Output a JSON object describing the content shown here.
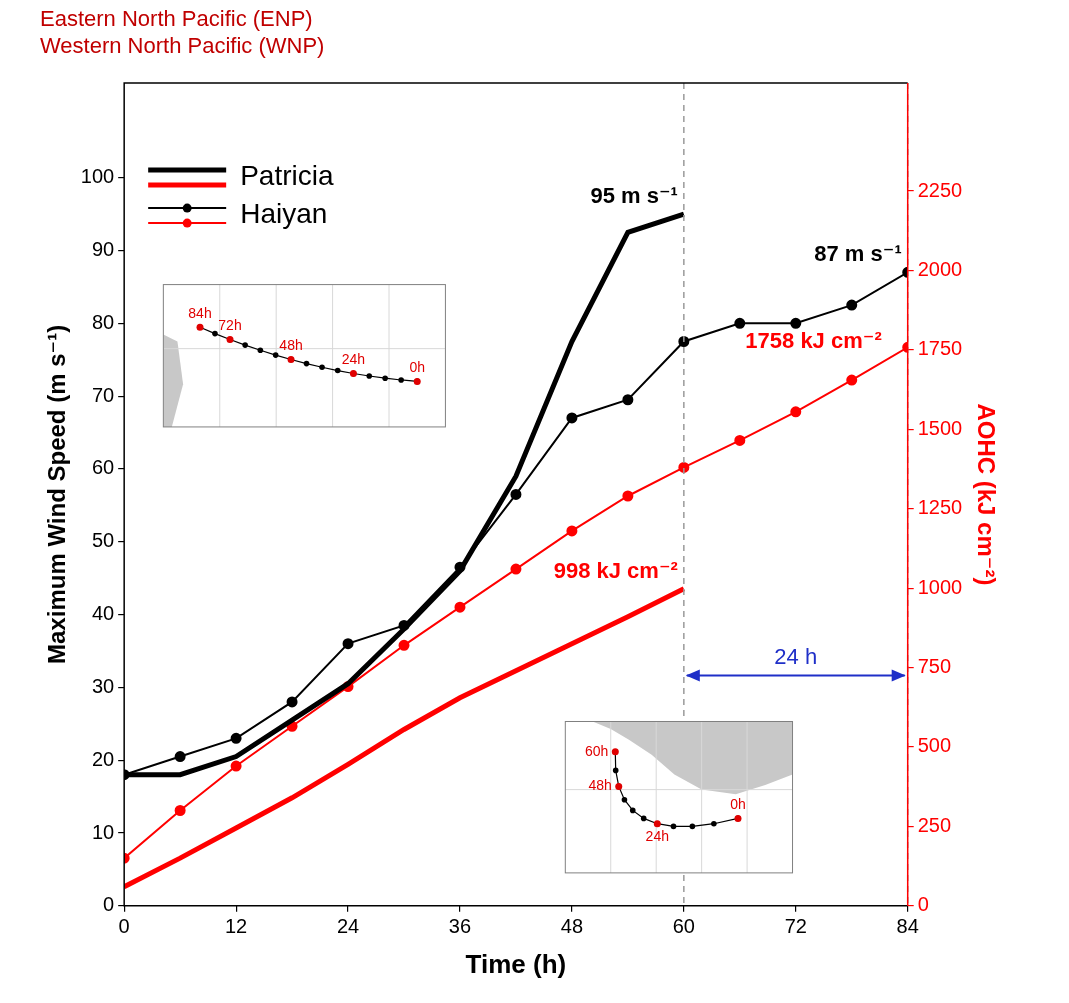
{
  "chart_data": {
    "type": "line",
    "title": [
      "Eastern North Pacific (ENP)",
      "Western North Pacific (WNP)"
    ],
    "x_label": "Time (h)",
    "y_label": "Maximum Wind Speed (m s⁻¹)",
    "y2_label": "AOHC (kJ cm⁻²)",
    "x": [
      0,
      6,
      12,
      18,
      24,
      30,
      36,
      42,
      48,
      54,
      60,
      66,
      72,
      78,
      84
    ],
    "xlim": [
      0,
      84
    ],
    "xticks": [
      0,
      12,
      24,
      36,
      48,
      60,
      72,
      84
    ],
    "ylim": [
      0,
      113
    ],
    "yticks": [
      0,
      10,
      20,
      30,
      40,
      50,
      60,
      70,
      80,
      90,
      100
    ],
    "y2lim": [
      0,
      2590
    ],
    "y2ticks": [
      0,
      250,
      500,
      750,
      1000,
      1250,
      1500,
      1750,
      2000,
      2250
    ],
    "grid": false,
    "legend": "upper left",
    "series": [
      {
        "name": "Patricia",
        "color": "#000000",
        "axis": "y",
        "line_style": "thick",
        "marker": "none",
        "values": [
          18,
          18,
          20.5,
          25.5,
          30.5,
          38,
          46,
          59,
          77.5,
          92.5,
          95,
          null,
          null,
          null,
          null
        ],
        "value_labels": [
          null,
          null,
          null,
          null,
          null,
          null,
          null,
          null,
          null,
          null,
          "95 m s⁻¹",
          null,
          null,
          null,
          null
        ]
      },
      {
        "name": "Patricia",
        "color": "#ff0000",
        "axis": "y2",
        "line_style": "thick",
        "marker": "none",
        "values": [
          60,
          150,
          245,
          340,
          445,
          555,
          655,
          740,
          825,
          910,
          998,
          null,
          null,
          null,
          null
        ],
        "value_labels": [
          null,
          null,
          null,
          null,
          null,
          null,
          null,
          null,
          null,
          null,
          "998 kJ cm⁻²",
          null,
          null,
          null,
          null
        ]
      },
      {
        "name": "Haiyan",
        "color": "#000000",
        "axis": "y",
        "line_style": "thin",
        "marker": "circle",
        "values": [
          18,
          20.5,
          23,
          28,
          36,
          38.5,
          46.5,
          56.5,
          67,
          69.5,
          77.5,
          80,
          80,
          82.5,
          87
        ],
        "value_labels": [
          null,
          null,
          null,
          null,
          null,
          null,
          null,
          null,
          null,
          null,
          null,
          null,
          null,
          null,
          "87 m s⁻¹"
        ]
      },
      {
        "name": "Haiyan",
        "color": "#ff0000",
        "axis": "y2",
        "line_style": "thin",
        "marker": "circle",
        "values": [
          150,
          300,
          440,
          565,
          690,
          820,
          940,
          1060,
          1180,
          1290,
          1380,
          1465,
          1555,
          1655,
          1758
        ],
        "value_labels": [
          null,
          null,
          null,
          null,
          null,
          null,
          null,
          null,
          null,
          null,
          null,
          null,
          null,
          null,
          "1758 kJ cm⁻²"
        ]
      }
    ],
    "annotations": [
      {
        "type": "span",
        "label": "24 h",
        "x": [
          60,
          84
        ],
        "color": "#1f2fc8"
      }
    ],
    "insets": [
      {
        "series": "Haiyan",
        "labels": [
          "84h",
          "72h",
          "48h",
          "24h",
          "0h"
        ]
      },
      {
        "series": "Patricia",
        "labels": [
          "60h",
          "48h",
          "24h",
          "0h"
        ]
      }
    ]
  }
}
